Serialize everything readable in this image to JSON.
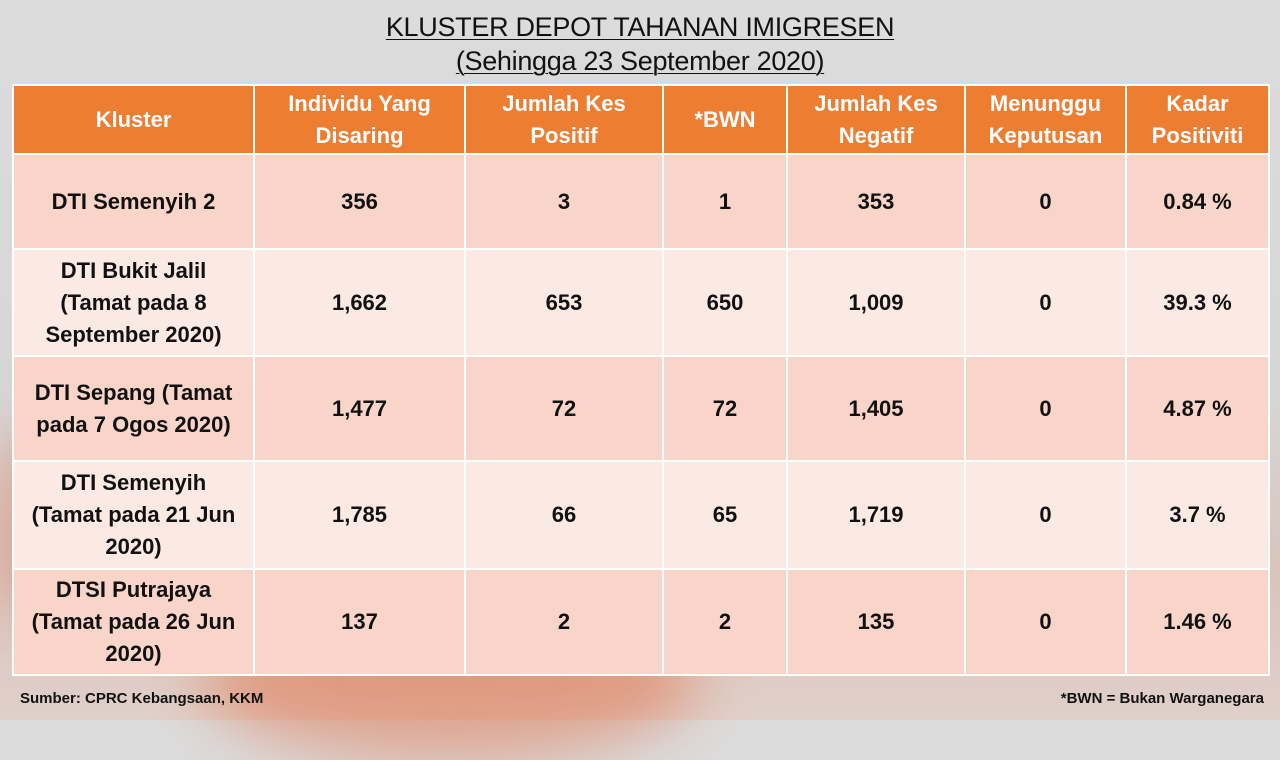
{
  "title": "KLUSTER DEPOT TAHANAN IMIGRESEN",
  "subtitle": "(Sehingga 23 September 2020)",
  "colors": {
    "header": "#ed7d31",
    "row_dark": "#f8d5c8",
    "row_light": "#fbe9e3"
  },
  "table": {
    "headers": [
      "Kluster",
      "Individu Yang Disaring",
      "Jumlah Kes Positif",
      "*BWN",
      "Jumlah Kes Negatif",
      "Menunggu Keputusan",
      "Kadar Positiviti"
    ],
    "rows": [
      [
        "DTI Semenyih 2",
        "356",
        "3",
        "1",
        "353",
        "0",
        "0.84 %"
      ],
      [
        "DTI Bukit Jalil (Tamat pada 8 September 2020)",
        "1,662",
        "653",
        "650",
        "1,009",
        "0",
        "39.3 %"
      ],
      [
        "DTI Sepang (Tamat pada 7 Ogos 2020)",
        "1,477",
        "72",
        "72",
        "1,405",
        "0",
        "4.87 %"
      ],
      [
        "DTI Semenyih (Tamat pada 21 Jun 2020)",
        "1,785",
        "66",
        "65",
        "1,719",
        "0",
        "3.7 %"
      ],
      [
        "DTSI Putrajaya (Tamat pada 26 Jun 2020)",
        "137",
        "2",
        "2",
        "135",
        "0",
        "1.46 %"
      ]
    ]
  },
  "source": "Sumber: CPRC Kebangsaan, KKM",
  "footnote": "*BWN = Bukan Warganegara"
}
